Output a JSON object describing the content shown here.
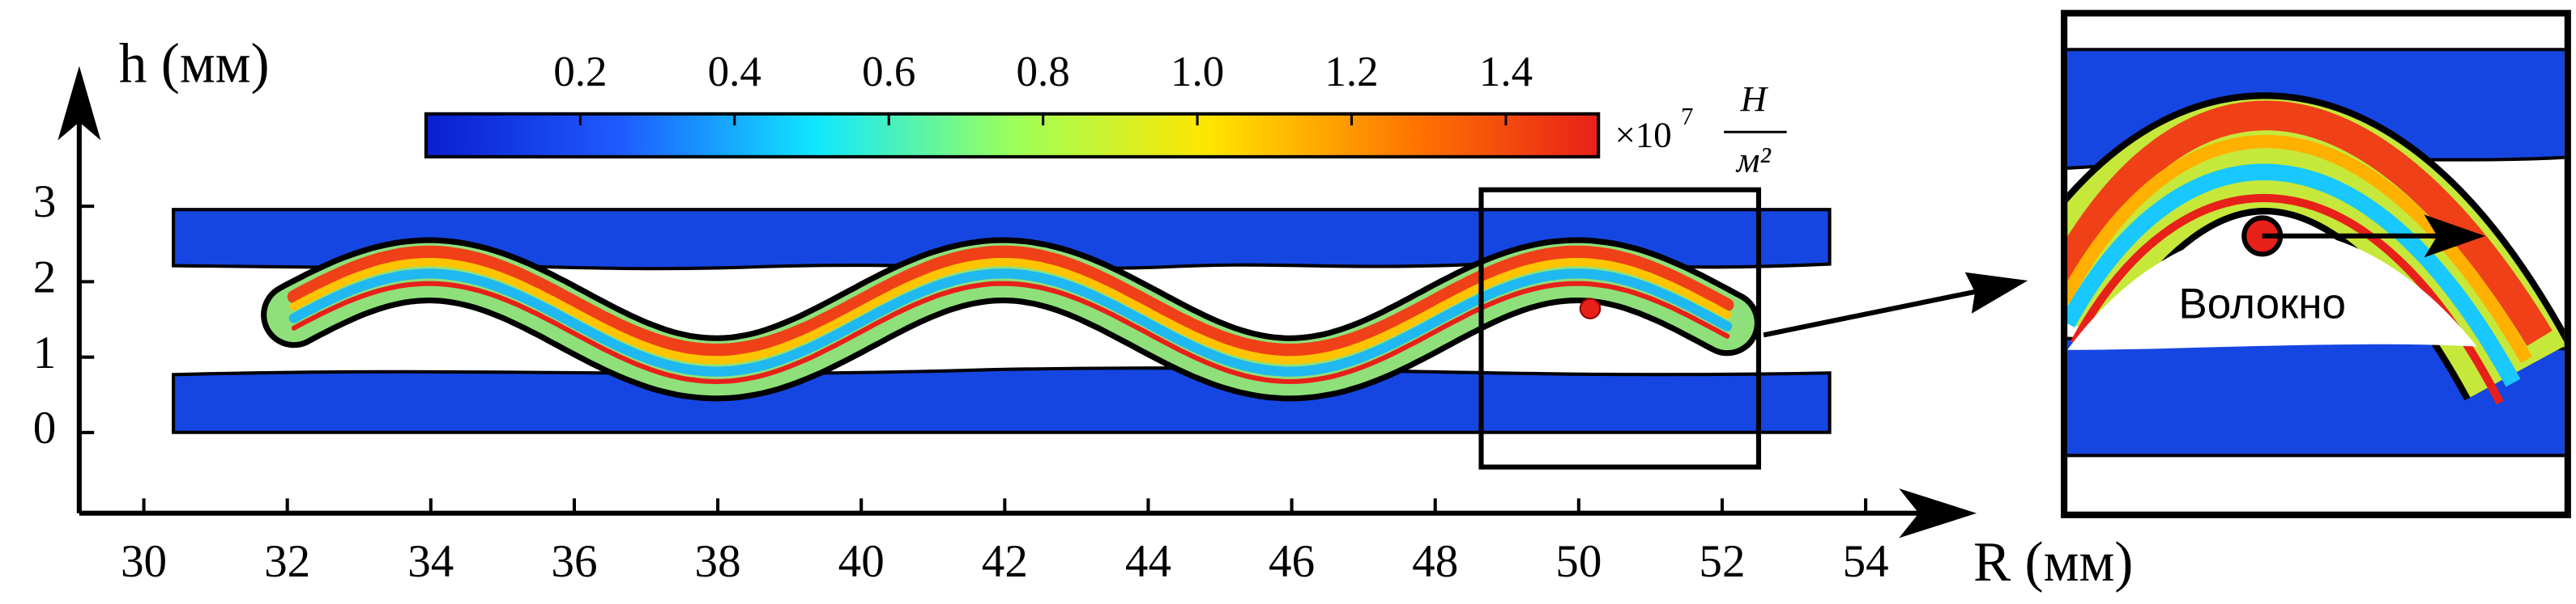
{
  "chart_data": {
    "type": "field",
    "xlabel": "R (мм)",
    "ylabel": "h (мм)",
    "xlim": [
      29.1,
      55.5
    ],
    "ylim": [
      -1.07,
      4.75
    ],
    "xticks": [
      30,
      32,
      34,
      36,
      38,
      40,
      42,
      44,
      46,
      48,
      50,
      52,
      54
    ],
    "yticks": [
      0,
      1,
      2,
      3
    ],
    "colorbar": {
      "lim": [
        0,
        1.52
      ],
      "ticks": [
        0.2,
        0.4,
        0.6,
        0.8,
        {
          "value": 1,
          "label": "1.0"
        },
        1.2,
        1.4
      ],
      "multiplier": "×10",
      "exponent": "7",
      "unit_numerator": "Н",
      "unit_denominator": "м²",
      "colors": [
        "#0a1ecf",
        "#1f5bff",
        "#10e8ff",
        "#9cff5a",
        "#ffe600",
        "#ff7a00",
        "#e8201a"
      ]
    },
    "annotation": "Волокно"
  }
}
